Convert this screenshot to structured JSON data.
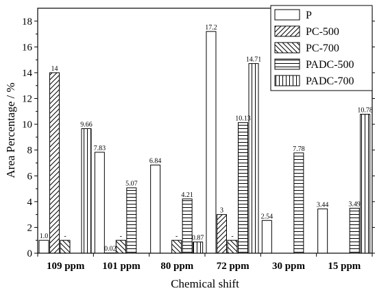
{
  "chart_data": {
    "type": "bar",
    "xlabel": "Chemical shift",
    "ylabel": "Area Percentage / %",
    "ylim": [
      0,
      19
    ],
    "yticks": [
      0,
      2,
      4,
      6,
      8,
      10,
      12,
      14,
      16,
      18
    ],
    "grid": false,
    "legend_position": "top-right",
    "categories": [
      "109 ppm",
      "101 ppm",
      "80 ppm",
      "72 ppm",
      "30 ppm",
      "15 ppm"
    ],
    "series": [
      {
        "name": "P",
        "pattern": "blank",
        "values": [
          1.0,
          7.83,
          6.84,
          17.2,
          2.54,
          3.44
        ],
        "labels": [
          "1.0",
          "7.83",
          "6.84",
          "17.2",
          "2.54",
          "3.44"
        ]
      },
      {
        "name": "PC-500",
        "pattern": "diagonal-forward",
        "values": [
          14,
          0.02,
          null,
          3,
          null,
          null
        ],
        "labels": [
          "14",
          "0.02",
          "",
          "3",
          "",
          ""
        ]
      },
      {
        "name": "PC-700",
        "pattern": "diagonal-backward",
        "values": [
          1.0,
          1.0,
          1.0,
          1.0,
          null,
          null
        ],
        "labels": [
          "-",
          "-",
          "-",
          "-",
          "",
          ""
        ]
      },
      {
        "name": "PADC-500",
        "pattern": "horizontal",
        "values": [
          null,
          5.07,
          4.21,
          10.13,
          7.78,
          3.49
        ],
        "labels": [
          "",
          "5.07",
          "4.21",
          "10.13",
          "7.78",
          "3.49"
        ]
      },
      {
        "name": "PADC-700",
        "pattern": "vertical",
        "values": [
          9.66,
          null,
          0.87,
          14.71,
          null,
          10.78
        ],
        "labels": [
          "9.66",
          "",
          "0.87",
          "14.71",
          "",
          "10.78"
        ]
      }
    ]
  }
}
